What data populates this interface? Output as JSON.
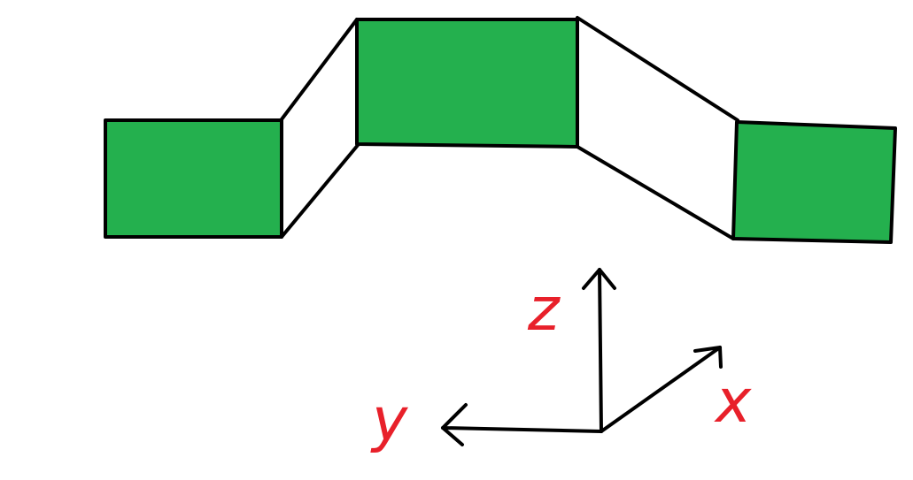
{
  "colors": {
    "panel_fill": "#24b04e",
    "stroke": "#000000",
    "axis_label": "#e8202a"
  },
  "axes": {
    "x_label": "x",
    "y_label": "y",
    "z_label": "z"
  }
}
